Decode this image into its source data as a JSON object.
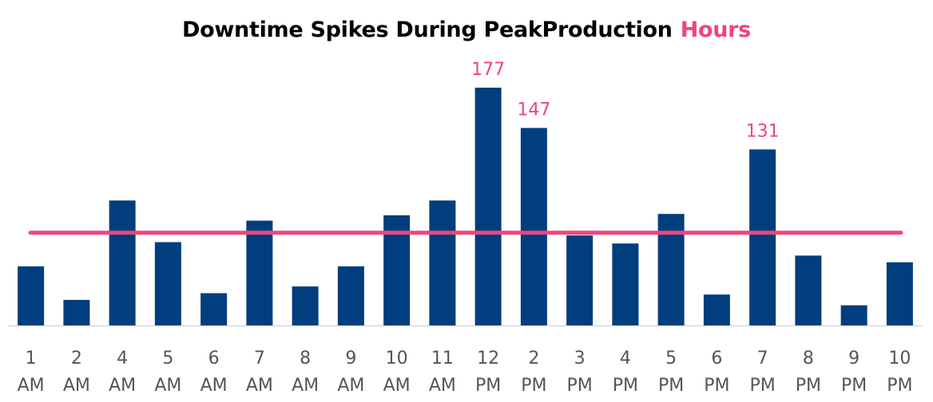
{
  "chart_data": {
    "type": "bar",
    "title": "Downtime Spikes During PeakProduction",
    "title_highlight": "Hours",
    "categories": [
      [
        "1",
        "AM"
      ],
      [
        "2",
        "AM"
      ],
      [
        "4",
        "AM"
      ],
      [
        "5",
        "AM"
      ],
      [
        "6",
        "AM"
      ],
      [
        "7",
        "AM"
      ],
      [
        "8",
        "AM"
      ],
      [
        "9",
        "AM"
      ],
      [
        "10",
        "AM"
      ],
      [
        "11",
        "AM"
      ],
      [
        "12",
        "PM"
      ],
      [
        "2",
        "PM"
      ],
      [
        "3",
        "PM"
      ],
      [
        "4",
        "PM"
      ],
      [
        "5",
        "PM"
      ],
      [
        "6",
        "PM"
      ],
      [
        "7",
        "PM"
      ],
      [
        "8",
        "PM"
      ],
      [
        "9",
        "PM"
      ],
      [
        "10",
        "PM"
      ]
    ],
    "values": [
      44,
      19,
      93,
      62,
      24,
      78,
      29,
      44,
      82,
      93,
      177,
      147,
      67,
      61,
      83,
      23,
      131,
      52,
      15,
      47
    ],
    "data_labels": [
      {
        "index": 10,
        "text": "177"
      },
      {
        "index": 11,
        "text": "147"
      },
      {
        "index": 16,
        "text": "131"
      }
    ],
    "average_line": 69,
    "ylim": [
      0,
      190
    ],
    "xlabel": "",
    "ylabel": "",
    "grid": false,
    "colors": {
      "bar": "#003e7e",
      "highlight": "#f0447c",
      "axis": "#d9d9d9"
    }
  }
}
